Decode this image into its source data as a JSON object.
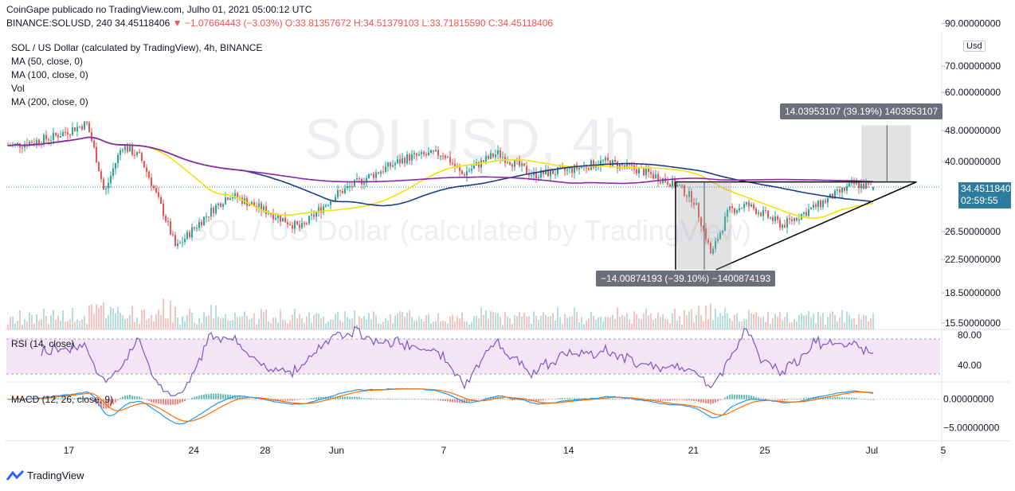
{
  "header": {
    "publisher": "CoinGape publicado no TradingView.com, Julho 01, 2021 05:00:12 UTC",
    "symbol": "BINANCE:SOLUSD, 240",
    "last": "34.45118406",
    "change": "▼ −1.07664443 (−3.03%)",
    "ohlc_o": "O:33.81357672",
    "ohlc_h": "H:34.51379103",
    "ohlc_l": "L:33.71815590",
    "ohlc_c": "C:34.45118406"
  },
  "legend": {
    "title": "SOL / US Dollar (calculated by TradingView), 4h, BINANCE",
    "ma50": "MA (50, close, 0)",
    "ma100": "MA (100, close, 0)",
    "vol": "Vol",
    "ma200": "MA (200, close, 0)",
    "rsi": "RSI (14, close)",
    "macd": "MACD (12, 26, close, 9)"
  },
  "watermark": {
    "symbol": "SOLUSD, 4h",
    "name": "SOL / US Dollar (calculated by TradingView)"
  },
  "price_box": {
    "price": "34.45118406",
    "countdown": "02:59:55"
  },
  "currency_badge": "Usd",
  "measures": {
    "upper": "14.03953107 (39.19%) 1403953107",
    "lower": "−14.00874193 (−39.10%) −1400874193"
  },
  "footer": {
    "brand": "TradingView"
  },
  "colors": {
    "up": "#26a69a",
    "down": "#ef5350",
    "ma50": "#f5e10a",
    "ma100": "#1e3a8a",
    "ma200": "#8e24aa",
    "rsi": "#7e57c2",
    "macd": "#2196f3",
    "signal": "#ff6d00"
  },
  "chart_data": {
    "type": "candlestick",
    "x_tick_labels": [
      "17",
      "24",
      "28",
      "Jun",
      "7",
      "14",
      "21",
      "25",
      "Jul",
      "5"
    ],
    "price_axis_labels": [
      "90.00000000",
      "70.00000000",
      "60.00000000",
      "48.00000000",
      "40.00000000",
      "34.45118406",
      "26.50000000",
      "22.50000000",
      "18.50000000",
      "15.50000000"
    ],
    "rsi_axis_labels": [
      "80.00",
      "40.00"
    ],
    "macd_axis_labels": [
      "0.00000000",
      "−5.00000000"
    ],
    "price_key_points": [
      {
        "date": "May 14",
        "price": 44
      },
      {
        "date": "May 16",
        "price": 46
      },
      {
        "date": "May 18",
        "price": 50
      },
      {
        "date": "May 19",
        "price": 33
      },
      {
        "date": "May 20",
        "price": 44
      },
      {
        "date": "May 21",
        "price": 41
      },
      {
        "date": "May 22",
        "price": 32
      },
      {
        "date": "May 23",
        "price": 24
      },
      {
        "date": "May 24",
        "price": 27
      },
      {
        "date": "May 26",
        "price": 33
      },
      {
        "date": "May 28",
        "price": 30
      },
      {
        "date": "May 30",
        "price": 27
      },
      {
        "date": "Jun 1",
        "price": 33
      },
      {
        "date": "Jun 3",
        "price": 37
      },
      {
        "date": "Jun 5",
        "price": 41
      },
      {
        "date": "Jun 7",
        "price": 42
      },
      {
        "date": "Jun 8",
        "price": 37
      },
      {
        "date": "Jun 10",
        "price": 42
      },
      {
        "date": "Jun 12",
        "price": 37
      },
      {
        "date": "Jun 14",
        "price": 38
      },
      {
        "date": "Jun 16",
        "price": 40
      },
      {
        "date": "Jun 18",
        "price": 38
      },
      {
        "date": "Jun 20",
        "price": 35
      },
      {
        "date": "Jun 21",
        "price": 32
      },
      {
        "date": "Jun 22",
        "price": 23
      },
      {
        "date": "Jun 23",
        "price": 30
      },
      {
        "date": "Jun 24",
        "price": 31
      },
      {
        "date": "Jun 26",
        "price": 27.5
      },
      {
        "date": "Jun 28",
        "price": 31
      },
      {
        "date": "Jun 29",
        "price": 33
      },
      {
        "date": "Jun 30",
        "price": 35
      },
      {
        "date": "Jul 1",
        "price": 34.45
      }
    ],
    "rsi_range": [
      20,
      85
    ],
    "macd_range": [
      -7,
      3
    ]
  }
}
